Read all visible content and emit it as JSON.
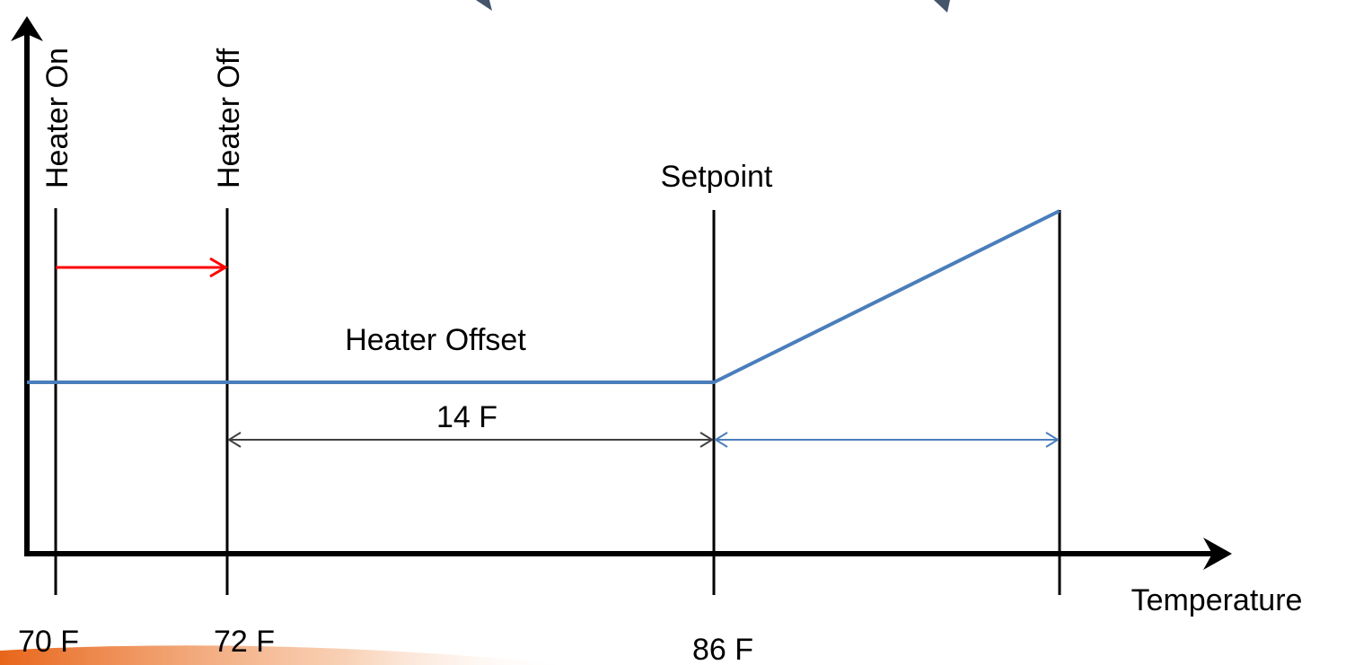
{
  "axis": {
    "x_label": "Temperature"
  },
  "markers": [
    {
      "label": "Heater On",
      "value_label": "70 F"
    },
    {
      "label": "Heater Off",
      "value_label": "72 F"
    },
    {
      "label": "Setpoint",
      "value_label": "86 F"
    }
  ],
  "annotations": {
    "offset_title": "Heater Offset",
    "offset_value": "14 F"
  }
}
